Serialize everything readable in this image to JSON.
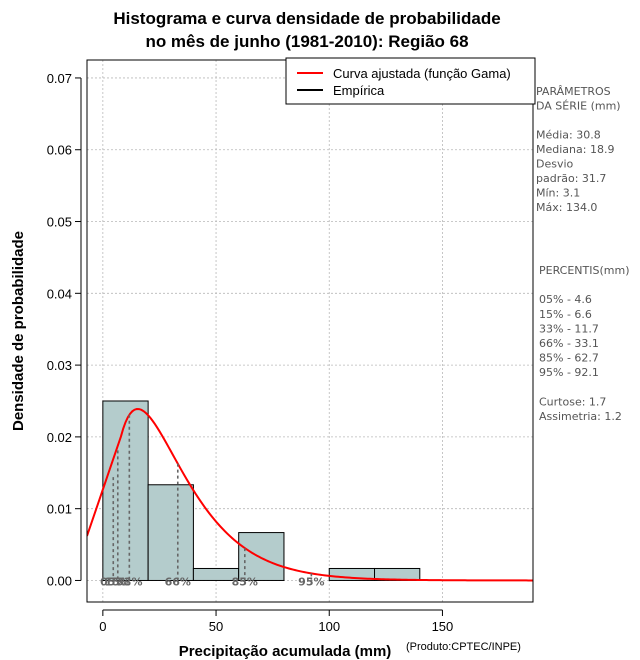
{
  "chart_data": {
    "type": "histogram",
    "title": [
      "Histograma e curva densidade de probabilidade",
      "no mês de junho (1981-2010): Região 68"
    ],
    "xlabel": "Precipitação acumulada (mm)",
    "ylabel": "Densidade de probabilidade",
    "credit": "(Produto:CPTEC/INPE)",
    "xlim": [
      -7,
      190
    ],
    "ylim": [
      -0.003,
      0.0725
    ],
    "xticks": [
      0,
      50,
      100,
      150
    ],
    "yticks": [
      0.0,
      0.01,
      0.02,
      0.03,
      0.04,
      0.05,
      0.06,
      0.07
    ],
    "ytick_labels": [
      "0.00",
      "0.01",
      "0.02",
      "0.03",
      "0.04",
      "0.05",
      "0.06",
      "0.07"
    ],
    "grid": true,
    "bins": [
      {
        "start": 0,
        "end": 20,
        "density": 0.025
      },
      {
        "start": 20,
        "end": 40,
        "density": 0.01333
      },
      {
        "start": 40,
        "end": 60,
        "density": 0.00167
      },
      {
        "start": 60,
        "end": 80,
        "density": 0.00667
      },
      {
        "start": 80,
        "end": 100,
        "density": 0.0
      },
      {
        "start": 100,
        "end": 120,
        "density": 0.00167
      },
      {
        "start": 120,
        "end": 140,
        "density": 0.00167
      }
    ],
    "fitted_curve": {
      "name": "Curva ajustada (função Gama)",
      "distribution": "gamma",
      "shape": 2.0,
      "scale": 15.4,
      "x_from": -7,
      "x_to": 190
    },
    "legend": [
      {
        "label": "Curva ajustada (função Gama)",
        "color": "#ff0000"
      },
      {
        "label": "Empírica",
        "color": "#000000"
      }
    ],
    "percentile_marks": [
      {
        "label": "05%",
        "value": 4.6
      },
      {
        "label": "15%",
        "value": 6.6
      },
      {
        "label": "33%",
        "value": 11.7
      },
      {
        "label": "66%",
        "value": 33.1
      },
      {
        "label": "85%",
        "value": 62.7
      },
      {
        "label": "95%",
        "value": 92.1
      }
    ]
  },
  "colors": {
    "bar_fill": "#b4cccc",
    "curve": "#ff0000",
    "grid": "#b8b8b8",
    "percentile_line": "#666666"
  },
  "side_panel": {
    "params_lines": [
      "PARÂMETROS",
      " DA SÉRIE (mm)",
      "",
      "Média:  30.8",
      "Mediana:  18.9",
      "Desvio",
      "padrão:  31.7",
      "Mín:  3.1",
      "Máx:  134.0"
    ],
    "percentis_lines": [
      " PERCENTIS(mm)",
      "",
      "05% -   4.6",
      "15% -   6.6",
      "33% -   11.7",
      "66% -   33.1",
      "85% -   62.7",
      "95% -   92.1",
      "",
      "Curtose:  1.7",
      "Assimetria:  1.2"
    ]
  }
}
